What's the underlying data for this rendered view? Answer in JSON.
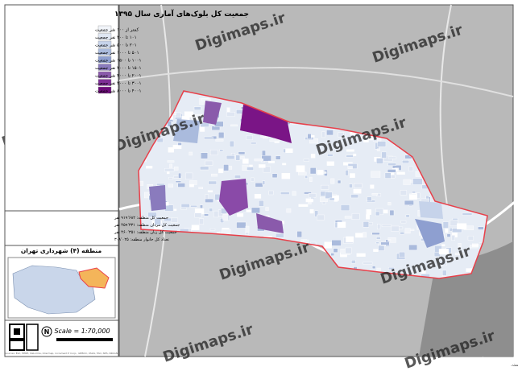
{
  "title": "جمعیت کل بلوک‌های آماری سال ۱۳۹۵",
  "legend": [
    {
      "label": "کمتر از ۱۰۰ نفر جمعیت",
      "color": "#f1f4f9"
    },
    {
      "label": "۱۰۱ تا ۲۰۰ نفر جمعیت",
      "color": "#dfe6f2"
    },
    {
      "label": "۲۰۱ تا ۵۰۰ نفر جمعیت",
      "color": "#c6d3ea"
    },
    {
      "label": "۵۰۱ تا ۱۰۰۰ نفر جمعیت",
      "color": "#aabbdd"
    },
    {
      "label": "۱۰۰۱ تا ۱۵۰۰ نفر جمعیت",
      "color": "#8e9fd0"
    },
    {
      "label": "۱۵۰۱ تا ۲۰۰۰ نفر جمعیت",
      "color": "#8a7bbd"
    },
    {
      "label": "۲۰۰۱ تا ۳۰۰۰ نفر جمعیت",
      "color": "#8a5aab"
    },
    {
      "label": "۳۰۰۱ تا ۴۰۰۰ نفر جمعیت",
      "color": "#7f2f97"
    },
    {
      "label": "۴۰۰۱ تا ۸۰۰۰ نفر جمعیت",
      "color": "#6d0c7a"
    }
  ],
  "stats": [
    "جمعیت کل منطقه: ۹۱۹٬۶۸۲ نفر",
    "جمعیت کل مردان منطقه: ۴۵۹٬۳۳۱ نفر",
    "جمعیت کل زنان منطقه: ۴۶۰٬۳۵۱ نفر",
    "تعداد کل خانوار منطقه: ۳۰۸٬۰۲۵"
  ],
  "region_title": "منطقه (۴) شهرداری تهران",
  "scale": "Scale = 1:70,000",
  "north": "N",
  "source": "Sources: Esri, HERE, DeLorme, Intermap, increment P Corp., GEBCO, USGS, FAO, NPS, NRCAN",
  "watermark": "Digimaps.ir",
  "footer": "حقوق مالکیت معنوی این محصول متعلق به سایت www.digimaps.ir بوده و تمامی حقوق آن محفوظ است."
}
